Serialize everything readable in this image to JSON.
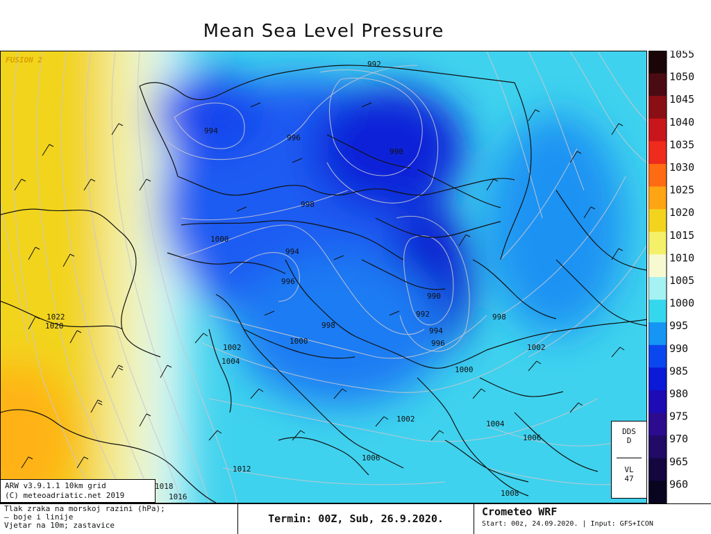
{
  "title": "Mean Sea Level Pressure",
  "overlay_tag": "FUSION 2",
  "model_info": [
    "ARW v3.9.1.1 10km grid",
    "(C) meteoadriatic.net 2019"
  ],
  "dds_box": {
    "line1": "DDS",
    "line2": "D",
    "line3": "VL",
    "line4": "47"
  },
  "description": [
    "Tlak zraka na morskoj razini (hPa);",
    "— boje i linije",
    "Vjetar na 10m; zastavice"
  ],
  "termin": "Termin: 00Z, Sub, 26.9.2020.",
  "brand": {
    "name": "Crometeo WRF",
    "run": "Start: 00z, 24.09.2020. | Input: GFS+ICON"
  },
  "legend": {
    "values": [
      "1055",
      "1050",
      "1045",
      "1040",
      "1035",
      "1030",
      "1025",
      "1020",
      "1015",
      "1010",
      "1005",
      "1000",
      "995",
      "990",
      "985",
      "980",
      "975",
      "970",
      "965",
      "960"
    ],
    "colors": [
      "#1a0608",
      "#4a0c12",
      "#8a0f14",
      "#c9161c",
      "#ee2b1c",
      "#ff6b12",
      "#ffa412",
      "#f2d41e",
      "#f4f06a",
      "#f7fad0",
      "#a5f2f3",
      "#35d7ee",
      "#1596f4",
      "#0b47ef",
      "#0b1ad6",
      "#1d0bb4",
      "#2c0b8e",
      "#210b66",
      "#14073f",
      "#090420"
    ]
  },
  "isobar_labels": [
    {
      "text": "992"
    },
    {
      "text": "994"
    },
    {
      "text": "996"
    },
    {
      "text": "990"
    },
    {
      "text": "998"
    },
    {
      "text": "1000"
    },
    {
      "text": "994"
    },
    {
      "text": "996"
    },
    {
      "text": "990"
    },
    {
      "text": "992"
    },
    {
      "text": "994"
    },
    {
      "text": "996"
    },
    {
      "text": "998"
    },
    {
      "text": "1000"
    },
    {
      "text": "1002"
    },
    {
      "text": "1004"
    },
    {
      "text": "1022"
    },
    {
      "text": "1020"
    },
    {
      "text": "998"
    },
    {
      "text": "1002"
    },
    {
      "text": "1000"
    },
    {
      "text": "1002"
    },
    {
      "text": "1004"
    },
    {
      "text": "1006"
    },
    {
      "text": "1006"
    },
    {
      "text": "1012"
    },
    {
      "text": "1018"
    },
    {
      "text": "1016"
    },
    {
      "text": "1008"
    }
  ]
}
